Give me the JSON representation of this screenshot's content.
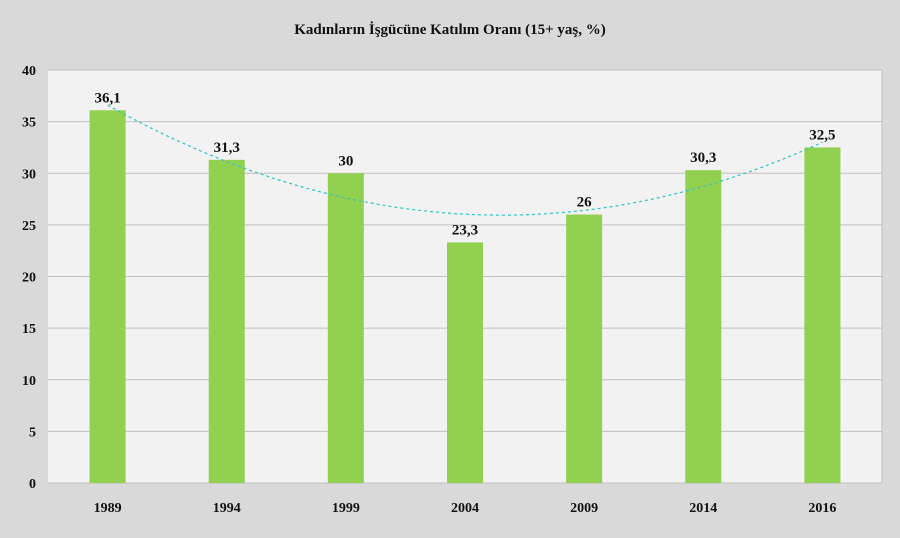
{
  "chart_data": {
    "type": "bar",
    "title": "Kadınların İşgücüne Katılım Oranı (15+ yaş, %)",
    "categories": [
      "1989",
      "1994",
      "1999",
      "2004",
      "2009",
      "2014",
      "2016"
    ],
    "values": [
      36.1,
      31.3,
      30,
      23.3,
      26,
      30.3,
      32.5
    ],
    "value_labels": [
      "36,1",
      "31,3",
      "30",
      "23,3",
      "26",
      "30,3",
      "32,5"
    ],
    "ylim": [
      0,
      40
    ],
    "yticks": [
      0,
      5,
      10,
      15,
      20,
      25,
      30,
      35,
      40
    ],
    "grid": true,
    "trendline": {
      "type": "polynomial",
      "style": "dashed"
    },
    "xlabel": "",
    "ylabel": ""
  },
  "colors": {
    "bar": "#92d050",
    "trendline": "#2ec4c4",
    "plot_bg": "#f2f2f2",
    "frame_bg": "#d9d9d9",
    "grid": "#c0c0c0"
  }
}
